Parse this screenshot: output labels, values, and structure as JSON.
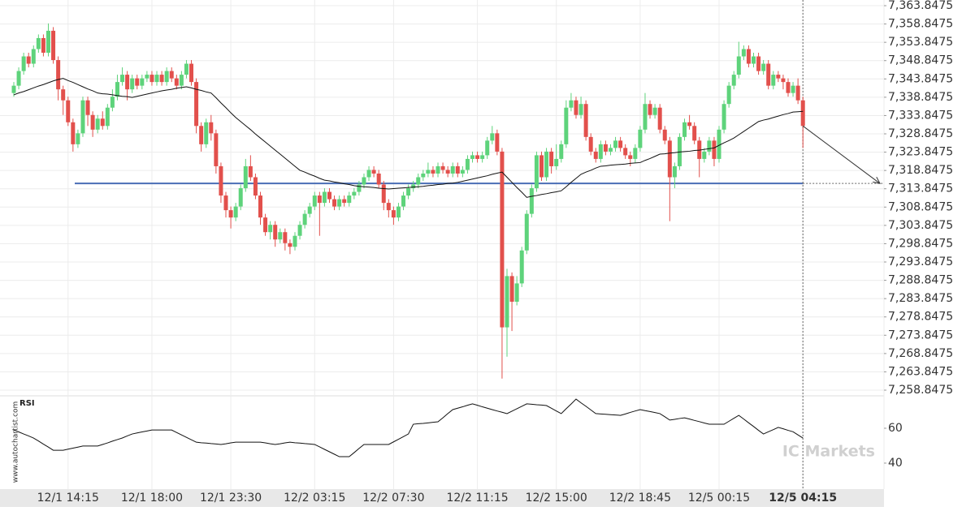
{
  "chart_data": [
    {
      "type": "candlestick",
      "categories": [
        null,
        null,
        null,
        null,
        null,
        null,
        null,
        null,
        null,
        null,
        null,
        "12/1 14:15",
        null,
        null,
        null,
        null,
        null,
        null,
        null,
        null,
        null,
        null,
        null,
        null,
        null,
        null,
        null,
        null,
        "12/1 18:00",
        null,
        null,
        null,
        null,
        null,
        null,
        null,
        null,
        null,
        null,
        null,
        null,
        null,
        null,
        null,
        "12/1 23:30",
        null,
        null,
        null,
        null,
        null,
        null,
        null,
        null,
        null,
        null,
        null,
        null,
        null,
        null,
        null,
        null,
        "12/2 03:15",
        null,
        null,
        null,
        null,
        null,
        null,
        null,
        null,
        null,
        null,
        null,
        null,
        null,
        null,
        null,
        "12/2 07:30",
        null,
        null,
        null,
        null,
        null,
        null,
        null,
        null,
        null,
        null,
        null,
        null,
        null,
        null,
        null,
        null,
        "12/2 11:15",
        null,
        null,
        null,
        null,
        null,
        null,
        null,
        null,
        null,
        null,
        null,
        null,
        null,
        null,
        null,
        "12/2 15:00",
        null,
        null,
        null,
        null,
        null,
        null,
        null,
        null,
        null,
        null,
        null,
        null,
        null,
        null,
        null,
        null,
        "12/2 18:45",
        null,
        null,
        null,
        null,
        null,
        null,
        null,
        null,
        null,
        null,
        null,
        null,
        null,
        null,
        null,
        "12/5 00:15",
        null,
        null,
        null,
        null,
        null,
        null,
        null,
        null,
        null,
        null,
        null,
        null,
        null,
        null,
        null,
        null,
        "12/5 04:15"
      ],
      "open": [
        7340,
        7342,
        7346,
        7350,
        7348,
        7352,
        7355,
        7351,
        7357,
        7349,
        7341,
        7338,
        7332,
        7326,
        7329,
        7338,
        7334,
        7330,
        7333,
        7331,
        7336,
        7339,
        7343,
        7345,
        7341,
        7344,
        7342,
        7344,
        7345,
        7343,
        7345,
        7343,
        7346,
        7344,
        7342,
        7345,
        7348,
        7343,
        7331,
        7326,
        7332,
        7329,
        7320,
        7312,
        7308,
        7306,
        7309,
        7314,
        7320,
        7317,
        7312,
        7306,
        7302,
        7304,
        7300,
        7302,
        7299,
        7298,
        7301,
        7304,
        7307,
        7309,
        7312,
        7310,
        7313,
        7311,
        7309,
        7311,
        7310,
        7312,
        7313,
        7315,
        7317,
        7319,
        7318,
        7315,
        7310,
        7308,
        7306,
        7309,
        7312,
        7314,
        7315,
        7317,
        7318,
        7319,
        7318,
        7320,
        7319,
        7318,
        7320,
        7318,
        7319,
        7322,
        7323,
        7322,
        7323,
        7327,
        7329,
        7324,
        7276,
        7290,
        7283,
        7288,
        7297,
        7307,
        7314,
        7323,
        7317,
        7324,
        7320,
        7322,
        7326,
        7336,
        7338,
        7334,
        7337,
        7328,
        7324,
        7322,
        7326,
        7324,
        7325,
        7327,
        7325,
        7323,
        7322,
        7325,
        7330,
        7337,
        7334,
        7336,
        7330,
        7327,
        7317,
        7320,
        7328,
        7332,
        7331,
        7327,
        7322,
        7324,
        7327,
        7322,
        7330,
        7337,
        7342,
        7345,
        7350,
        7352,
        7348,
        7350,
        7346,
        7348,
        7342,
        7345,
        7344,
        7343,
        7340,
        7342,
        7338
      ],
      "high": [
        7343,
        7347,
        7351,
        7351,
        7353,
        7356,
        7356,
        7359,
        7358,
        7350,
        7342,
        7339,
        7333,
        7330,
        7339,
        7339,
        7335,
        7334,
        7335,
        7337,
        7341,
        7345,
        7347,
        7346,
        7345,
        7345,
        7345,
        7346,
        7346,
        7346,
        7346,
        7347,
        7347,
        7345,
        7346,
        7349,
        7349,
        7344,
        7332,
        7333,
        7334,
        7330,
        7321,
        7313,
        7309,
        7310,
        7315,
        7322,
        7323,
        7318,
        7313,
        7307,
        7305,
        7305,
        7303,
        7303,
        7300,
        7302,
        7305,
        7308,
        7310,
        7313,
        7313,
        7314,
        7314,
        7312,
        7312,
        7312,
        7313,
        7314,
        7316,
        7318,
        7320,
        7320,
        7319,
        7316,
        7311,
        7309,
        7310,
        7313,
        7315,
        7316,
        7318,
        7319,
        7321,
        7320,
        7321,
        7321,
        7320,
        7321,
        7321,
        7320,
        7323,
        7324,
        7324,
        7324,
        7328,
        7331,
        7330,
        7325,
        7292,
        7291,
        7290,
        7298,
        7308,
        7315,
        7324,
        7324,
        7325,
        7325,
        7326,
        7327,
        7338,
        7340,
        7339,
        7339,
        7338,
        7329,
        7325,
        7327,
        7327,
        7326,
        7328,
        7328,
        7326,
        7324,
        7326,
        7331,
        7340,
        7338,
        7337,
        7337,
        7331,
        7328,
        7321,
        7329,
        7333,
        7334,
        7332,
        7328,
        7325,
        7328,
        7328,
        7331,
        7338,
        7343,
        7346,
        7354,
        7353,
        7353,
        7351,
        7351,
        7349,
        7349,
        7346,
        7346,
        7345,
        7344,
        7343,
        7344,
        7339
      ],
      "low": [
        7339,
        7341,
        7345,
        7347,
        7347,
        7351,
        7350,
        7350,
        7348,
        7338,
        7334,
        7331,
        7324,
        7325,
        7328,
        7331,
        7328,
        7329,
        7330,
        7330,
        7335,
        7338,
        7342,
        7338,
        7340,
        7341,
        7341,
        7343,
        7342,
        7342,
        7342,
        7342,
        7343,
        7341,
        7341,
        7344,
        7342,
        7329,
        7324,
        7325,
        7327,
        7318,
        7310,
        7306,
        7303,
        7305,
        7308,
        7313,
        7316,
        7311,
        7304,
        7301,
        7300,
        7298,
        7299,
        7297,
        7296,
        7297,
        7300,
        7303,
        7306,
        7308,
        7301,
        7309,
        7310,
        7308,
        7308,
        7309,
        7309,
        7311,
        7312,
        7314,
        7316,
        7317,
        7314,
        7308,
        7306,
        7304,
        7305,
        7308,
        7311,
        7313,
        7314,
        7316,
        7317,
        7317,
        7317,
        7318,
        7317,
        7317,
        7317,
        7317,
        7318,
        7321,
        7321,
        7321,
        7322,
        7326,
        7323,
        7262,
        7268,
        7275,
        7282,
        7287,
        7296,
        7306,
        7313,
        7316,
        7316,
        7318,
        7319,
        7321,
        7325,
        7335,
        7333,
        7333,
        7327,
        7323,
        7321,
        7321,
        7323,
        7323,
        7324,
        7324,
        7322,
        7320,
        7321,
        7324,
        7329,
        7333,
        7333,
        7329,
        7326,
        7305,
        7314,
        7319,
        7327,
        7330,
        7326,
        7317,
        7321,
        7323,
        7320,
        7321,
        7329,
        7336,
        7341,
        7344,
        7349,
        7347,
        7347,
        7345,
        7345,
        7341,
        7341,
        7343,
        7341,
        7339,
        7339,
        7337,
        7325
      ],
      "close": [
        7342,
        7346,
        7350,
        7348,
        7352,
        7355,
        7351,
        7357,
        7349,
        7341,
        7338,
        7332,
        7326,
        7329,
        7338,
        7334,
        7330,
        7333,
        7331,
        7336,
        7339,
        7343,
        7345,
        7341,
        7344,
        7342,
        7344,
        7345,
        7343,
        7345,
        7343,
        7346,
        7344,
        7342,
        7345,
        7348,
        7343,
        7331,
        7326,
        7332,
        7329,
        7320,
        7312,
        7308,
        7306,
        7309,
        7314,
        7320,
        7317,
        7312,
        7306,
        7302,
        7304,
        7300,
        7302,
        7299,
        7298,
        7301,
        7304,
        7307,
        7309,
        7312,
        7310,
        7313,
        7311,
        7309,
        7311,
        7310,
        7312,
        7313,
        7315,
        7317,
        7319,
        7318,
        7315,
        7310,
        7308,
        7306,
        7309,
        7312,
        7314,
        7315,
        7317,
        7318,
        7319,
        7318,
        7320,
        7319,
        7318,
        7320,
        7318,
        7319,
        7322,
        7323,
        7322,
        7323,
        7327,
        7329,
        7324,
        7276,
        7290,
        7283,
        7288,
        7297,
        7307,
        7314,
        7323,
        7317,
        7324,
        7320,
        7322,
        7326,
        7336,
        7338,
        7334,
        7337,
        7328,
        7324,
        7322,
        7326,
        7324,
        7325,
        7327,
        7325,
        7323,
        7322,
        7325,
        7330,
        7337,
        7334,
        7336,
        7330,
        7327,
        7317,
        7320,
        7328,
        7332,
        7331,
        7327,
        7322,
        7324,
        7327,
        7322,
        7330,
        7337,
        7342,
        7345,
        7350,
        7352,
        7348,
        7350,
        7346,
        7348,
        7342,
        7345,
        7344,
        7343,
        7340,
        7342,
        7338,
        7331
      ],
      "up_color": "#5ed37b",
      "down_color": "#e2504c",
      "ylim": [
        7257.3,
        7365.4
      ],
      "yticks": [
        {
          "value": 7363.8475,
          "label": "7,363.8475"
        },
        {
          "value": 7358.8475,
          "label": "7,358.8475"
        },
        {
          "value": 7353.8475,
          "label": "7,353.8475"
        },
        {
          "value": 7348.8475,
          "label": "7,348.8475"
        },
        {
          "value": 7343.8475,
          "label": "7,343.8475"
        },
        {
          "value": 7338.8475,
          "label": "7,338.8475"
        },
        {
          "value": 7333.8475,
          "label": "7,333.8475"
        },
        {
          "value": 7328.8475,
          "label": "7,328.8475"
        },
        {
          "value": 7323.8475,
          "label": "7,323.8475"
        },
        {
          "value": 7318.8475,
          "label": "7,318.8475"
        },
        {
          "value": 7313.8475,
          "label": "7,313.8475"
        },
        {
          "value": 7308.8475,
          "label": "7,308.8475"
        },
        {
          "value": 7303.8475,
          "label": "7,303.8475"
        },
        {
          "value": 7298.8475,
          "label": "7,298.8475"
        },
        {
          "value": 7293.8475,
          "label": "7,293.8475"
        },
        {
          "value": 7288.8475,
          "label": "7,288.8475"
        },
        {
          "value": 7283.8475,
          "label": "7,283.8475"
        },
        {
          "value": 7278.8475,
          "label": "7,278.8475"
        },
        {
          "value": 7273.8475,
          "label": "7,273.8475"
        },
        {
          "value": 7268.8475,
          "label": "7,268.8475"
        },
        {
          "value": 7263.8475,
          "label": "7,263.8475"
        },
        {
          "value": 7258.8475,
          "label": "7,258.8475"
        }
      ],
      "grid": true,
      "overlays": [
        {
          "color": "#111111",
          "values": [
            7339.5,
            7340.0,
            7340.4,
            7340.9,
            7341.4,
            7341.9,
            7342.3,
            7342.8,
            7343.3,
            7343.7,
            7344.0,
            7343.4,
            7342.9,
            7342.3,
            7341.7,
            7341.1,
            7340.6,
            7340.0,
            7339.8,
            7339.7,
            7339.5,
            7339.3,
            7339.1,
            7339.0,
            7338.8,
            7339.1,
            7339.4,
            7339.7,
            7340.0,
            7340.3,
            7340.6,
            7340.8,
            7341.0,
            7341.3,
            7341.5,
            7341.7,
            7341.4,
            7341.0,
            7340.7,
            7340.3,
            7340.0,
            7338.7,
            7337.3,
            7336.0,
            7334.6,
            7333.3,
            7332.2,
            7331.1,
            7330.0,
            7328.8,
            7327.7,
            7326.6,
            7325.5,
            7324.4,
            7323.3,
            7322.2,
            7321.1,
            7320.0,
            7318.9,
            7318.4,
            7317.8,
            7317.3,
            7316.7,
            7316.2,
            7316.0,
            7315.7,
            7315.5,
            7315.2,
            7315.0,
            7314.7,
            7314.5,
            7314.4,
            7314.3,
            7314.2,
            7314.0,
            7313.9,
            7313.8,
            7313.9,
            7314.0,
            7314.1,
            7314.2,
            7314.3,
            7314.4,
            7314.5,
            7314.7,
            7314.8,
            7315.0,
            7315.1,
            7315.3,
            7315.4,
            7315.6,
            7315.9,
            7316.2,
            7316.5,
            7316.8,
            7317.1,
            7317.4,
            7317.8,
            7318.1,
            7318.4,
            7317.0,
            7315.6,
            7314.2,
            7312.9,
            7311.5,
            7311.8,
            7312.0,
            7312.3,
            7312.5,
            7312.8,
            7313.0,
            7313.3,
            7314.4,
            7315.6,
            7316.7,
            7317.8,
            7318.4,
            7318.9,
            7319.5,
            7320.0,
            7320.1,
            7320.3,
            7320.4,
            7320.5,
            7320.6,
            7320.8,
            7320.9,
            7321.0,
            7321.6,
            7322.1,
            7322.7,
            7323.3,
            7323.4,
            7323.6,
            7323.7,
            7323.9,
            7324.0,
            7324.1,
            7324.3,
            7324.4,
            7324.6,
            7324.8,
            7325.0,
            7325.7,
            7326.4,
            7327.0,
            7327.7,
            7328.6,
            7329.5,
            7330.4,
            7331.3,
            7332.2,
            7332.6,
            7332.9,
            7333.3,
            7333.7,
            7334.1,
            7334.4,
            7334.8,
            7334.9,
            7335.0
          ]
        }
      ],
      "level": {
        "value": 7315.3,
        "color": "#4a6eb5"
      }
    },
    {
      "type": "line",
      "title": "RSI",
      "color": "#111111",
      "values": [
        59.0,
        57.9,
        56.7,
        55.6,
        54.4,
        52.7,
        50.9,
        49.2,
        47.4,
        47.4,
        47.4,
        48.0,
        48.6,
        49.2,
        49.8,
        49.8,
        49.8,
        49.8,
        50.7,
        51.6,
        52.6,
        53.5,
        54.4,
        55.6,
        56.7,
        57.3,
        57.9,
        58.4,
        59.0,
        59.0,
        59.0,
        59.0,
        59.0,
        57.6,
        56.2,
        54.8,
        53.4,
        52.0,
        51.7,
        51.5,
        51.2,
        51.0,
        50.7,
        51.1,
        51.6,
        52.0,
        52.0,
        52.0,
        52.0,
        52.0,
        52.0,
        51.6,
        51.1,
        50.7,
        51.1,
        51.6,
        52.0,
        51.7,
        51.5,
        51.2,
        51.0,
        50.7,
        49.3,
        47.9,
        46.5,
        45.1,
        43.7,
        43.7,
        43.7,
        46.0,
        48.4,
        50.7,
        50.7,
        50.7,
        50.7,
        50.7,
        50.7,
        52.2,
        53.7,
        55.2,
        56.7,
        62.3,
        62.6,
        62.8,
        63.1,
        63.4,
        63.7,
        66.0,
        68.4,
        70.7,
        71.5,
        72.3,
        73.2,
        74.0,
        73.2,
        72.3,
        71.5,
        70.7,
        69.9,
        69.2,
        68.4,
        69.8,
        71.2,
        72.6,
        74.0,
        73.8,
        73.5,
        73.3,
        73.0,
        71.5,
        69.9,
        68.4,
        71.2,
        73.9,
        76.7,
        74.6,
        72.6,
        70.5,
        68.4,
        68.2,
        68.0,
        67.8,
        67.6,
        67.4,
        68.2,
        69.1,
        69.9,
        70.7,
        70.1,
        69.6,
        69.0,
        68.4,
        66.6,
        64.7,
        65.1,
        65.6,
        66.0,
        65.3,
        64.5,
        63.8,
        63.0,
        62.3,
        62.3,
        62.3,
        62.3,
        64.0,
        65.7,
        67.4,
        65.3,
        63.1,
        61.0,
        58.8,
        56.7,
        58.0,
        59.2,
        60.5,
        59.7,
        58.8,
        58.0,
        56.2,
        54.4
      ],
      "ylim": [
        25.1,
        78.6
      ],
      "yticks": [
        60,
        40
      ]
    }
  ],
  "watermarks": {
    "site": "www.autochartist.com",
    "brand": "IC Markets"
  }
}
